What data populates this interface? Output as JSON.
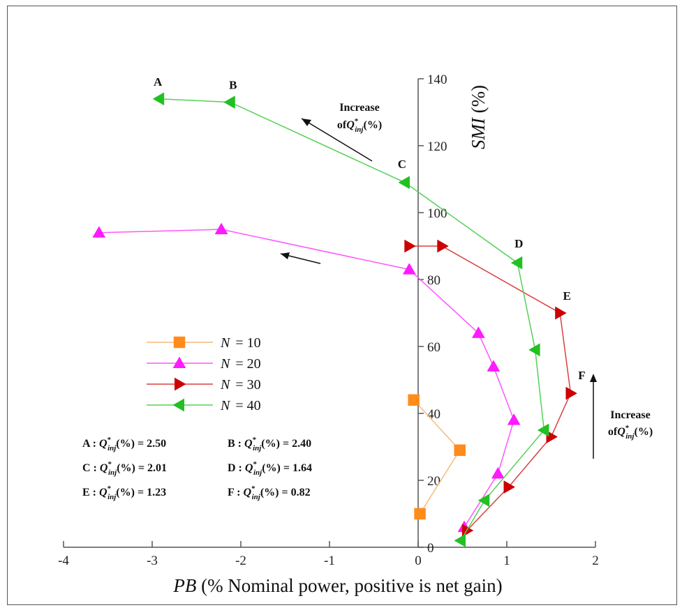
{
  "chart_data": {
    "type": "line",
    "xlabel_var": "PB",
    "xlabel_rest": " (% Nominal power, positive is net gain)",
    "ylabel_var": "SMI",
    "ylabel_rest": " (%)",
    "xlim": [
      -4,
      2
    ],
    "ylim": [
      0,
      140
    ],
    "xticks": [
      -4,
      -3,
      -2,
      -1,
      0,
      1,
      2
    ],
    "yticks": [
      0,
      20,
      40,
      60,
      80,
      100,
      120,
      140
    ],
    "grid": false,
    "legend_position": "center-left",
    "series": [
      {
        "name": "N = 10",
        "var": "N",
        "val": "= 10",
        "color": "#ff8c1a",
        "line": "#f5b97a",
        "marker": "square",
        "x": [
          -0.05,
          0.47,
          0.02
        ],
        "y": [
          44,
          29,
          10
        ]
      },
      {
        "name": "N = 20",
        "var": "N",
        "val": "= 20",
        "color": "#ff1aff",
        "line": "#ff55ff",
        "marker": "triangle-up",
        "x": [
          -3.6,
          -2.22,
          -0.1,
          0.68,
          0.85,
          1.08,
          0.9,
          0.52
        ],
        "y": [
          94,
          95,
          83,
          64,
          54,
          38,
          22,
          6
        ]
      },
      {
        "name": "N = 30",
        "var": "N",
        "val": "= 30",
        "color": "#cc0000",
        "line": "#d94040",
        "marker": "triangle-right",
        "x": [
          -0.1,
          0.27,
          1.6,
          1.72,
          1.5,
          1.02,
          0.55
        ],
        "y": [
          90,
          90,
          70,
          46,
          33,
          18,
          5
        ]
      },
      {
        "name": "N = 40",
        "var": "N",
        "val": "= 40",
        "color": "#22c022",
        "line": "#55d055",
        "marker": "triangle-left",
        "x": [
          -2.92,
          -2.12,
          -0.15,
          1.12,
          1.32,
          1.42,
          0.75,
          0.48
        ],
        "y": [
          134,
          133,
          109,
          85,
          59,
          35,
          14,
          2
        ]
      }
    ],
    "point_labels": [
      {
        "text": "A",
        "x": -2.92,
        "y": 134
      },
      {
        "text": "B",
        "x": -2.12,
        "y": 133
      },
      {
        "text": "C",
        "x": -0.15,
        "y": 109
      },
      {
        "text": "D",
        "x": 1.12,
        "y": 85
      },
      {
        "text": "E",
        "x": 1.6,
        "y": 70
      },
      {
        "text": "F",
        "x": 1.72,
        "y": 46
      }
    ],
    "annotations": [
      {
        "line1": "Increase",
        "line2_prefix": "of",
        "q_sym": "Q",
        "q_sup": "*",
        "q_sub": "inj",
        "suffix": "(%)"
      },
      {
        "line1": "Increase",
        "line2_prefix": "of",
        "q_sym": "Q",
        "q_sup": "*",
        "q_sub": "inj",
        "suffix": "(%)"
      }
    ],
    "q_values": [
      {
        "label": "A",
        "value": "2.50"
      },
      {
        "label": "B",
        "value": "2.40"
      },
      {
        "label": "C",
        "value": "2.01"
      },
      {
        "label": "D",
        "value": "1.64"
      },
      {
        "label": "E",
        "value": "1.23"
      },
      {
        "label": "F",
        "value": "0.82"
      }
    ]
  }
}
